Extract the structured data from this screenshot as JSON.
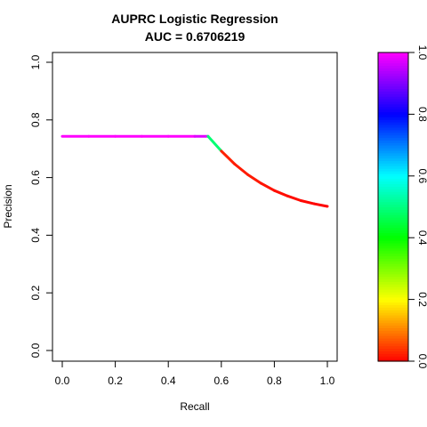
{
  "chart_data": {
    "type": "line",
    "title": "AUPRC Logistic Regression",
    "subtitle": "AUC = 0.6706219",
    "xlabel": "Recall",
    "ylabel": "Precision",
    "xlim": [
      0,
      1
    ],
    "ylim": [
      0,
      1
    ],
    "x_ticks": [
      0.0,
      0.2,
      0.4,
      0.6,
      0.8,
      1.0
    ],
    "x_tick_labels": [
      "0.0",
      "0.2",
      "0.4",
      "0.6",
      "0.8",
      "1.0"
    ],
    "y_ticks": [
      0.0,
      0.2,
      0.4,
      0.6,
      0.8,
      1.0
    ],
    "y_tick_labels": [
      "0.0",
      "0.2",
      "0.4",
      "0.6",
      "0.8",
      "1.0"
    ],
    "grid": false,
    "series": [
      {
        "x": [
          0.0,
          0.1,
          0.2,
          0.3,
          0.4,
          0.5,
          0.55,
          0.6,
          0.65,
          0.7,
          0.75,
          0.8,
          0.85,
          0.9,
          0.95,
          1.0
        ],
        "y": [
          0.743,
          0.743,
          0.743,
          0.743,
          0.743,
          0.743,
          0.743,
          0.692,
          0.647,
          0.61,
          0.58,
          0.555,
          0.536,
          0.52,
          0.509,
          0.5
        ],
        "threshold": [
          1.0,
          1.0,
          1.0,
          1.0,
          1.0,
          1.0,
          0.95,
          0.03,
          0.02,
          0.02,
          0.02,
          0.01,
          0.01,
          0.01,
          0.0,
          0.0
        ]
      }
    ],
    "colorbar": {
      "range": [
        0,
        1
      ],
      "ticks": [
        0.0,
        0.2,
        0.4,
        0.6,
        0.8,
        1.0
      ],
      "tick_labels": [
        "0.0",
        "0.2",
        "0.4",
        "0.6",
        "0.8",
        "1.0"
      ],
      "colors": [
        "#ff0000",
        "#ffff00",
        "#00ff00",
        "#00ffff",
        "#0000ff",
        "#ff00ff"
      ]
    }
  }
}
